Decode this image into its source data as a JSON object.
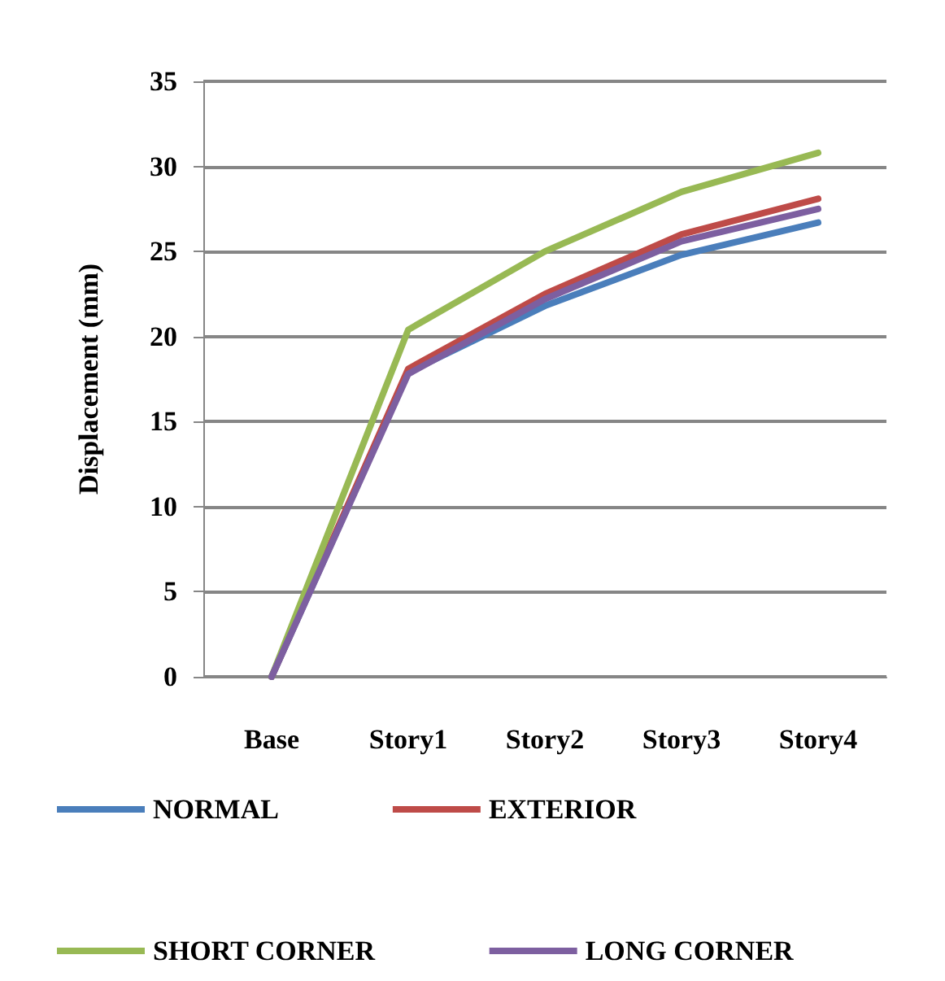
{
  "chart_data": {
    "type": "line",
    "ylabel": "Displacement (mm)",
    "categories": [
      "Base",
      "Story1",
      "Story2",
      "Story3",
      "Story4"
    ],
    "series": [
      {
        "name": "NORMAL",
        "color": "#4a7ebb",
        "values": [
          0,
          17.9,
          21.8,
          24.8,
          26.7
        ]
      },
      {
        "name": "EXTERIOR",
        "color": "#be4b48",
        "values": [
          0,
          18.1,
          22.5,
          26.0,
          28.1
        ]
      },
      {
        "name": "SHORT CORNER",
        "color": "#98b954",
        "values": [
          0,
          20.4,
          25.0,
          28.5,
          30.8
        ]
      },
      {
        "name": "LONG CORNER",
        "color": "#7d5fa0",
        "values": [
          0,
          17.8,
          22.2,
          25.6,
          27.5
        ]
      }
    ],
    "ylim": [
      0,
      35
    ],
    "yticks": [
      0,
      5,
      10,
      15,
      20,
      25,
      30,
      35
    ],
    "grid": "y",
    "legend": "bottom",
    "marker": "none",
    "line_style": "solid"
  }
}
